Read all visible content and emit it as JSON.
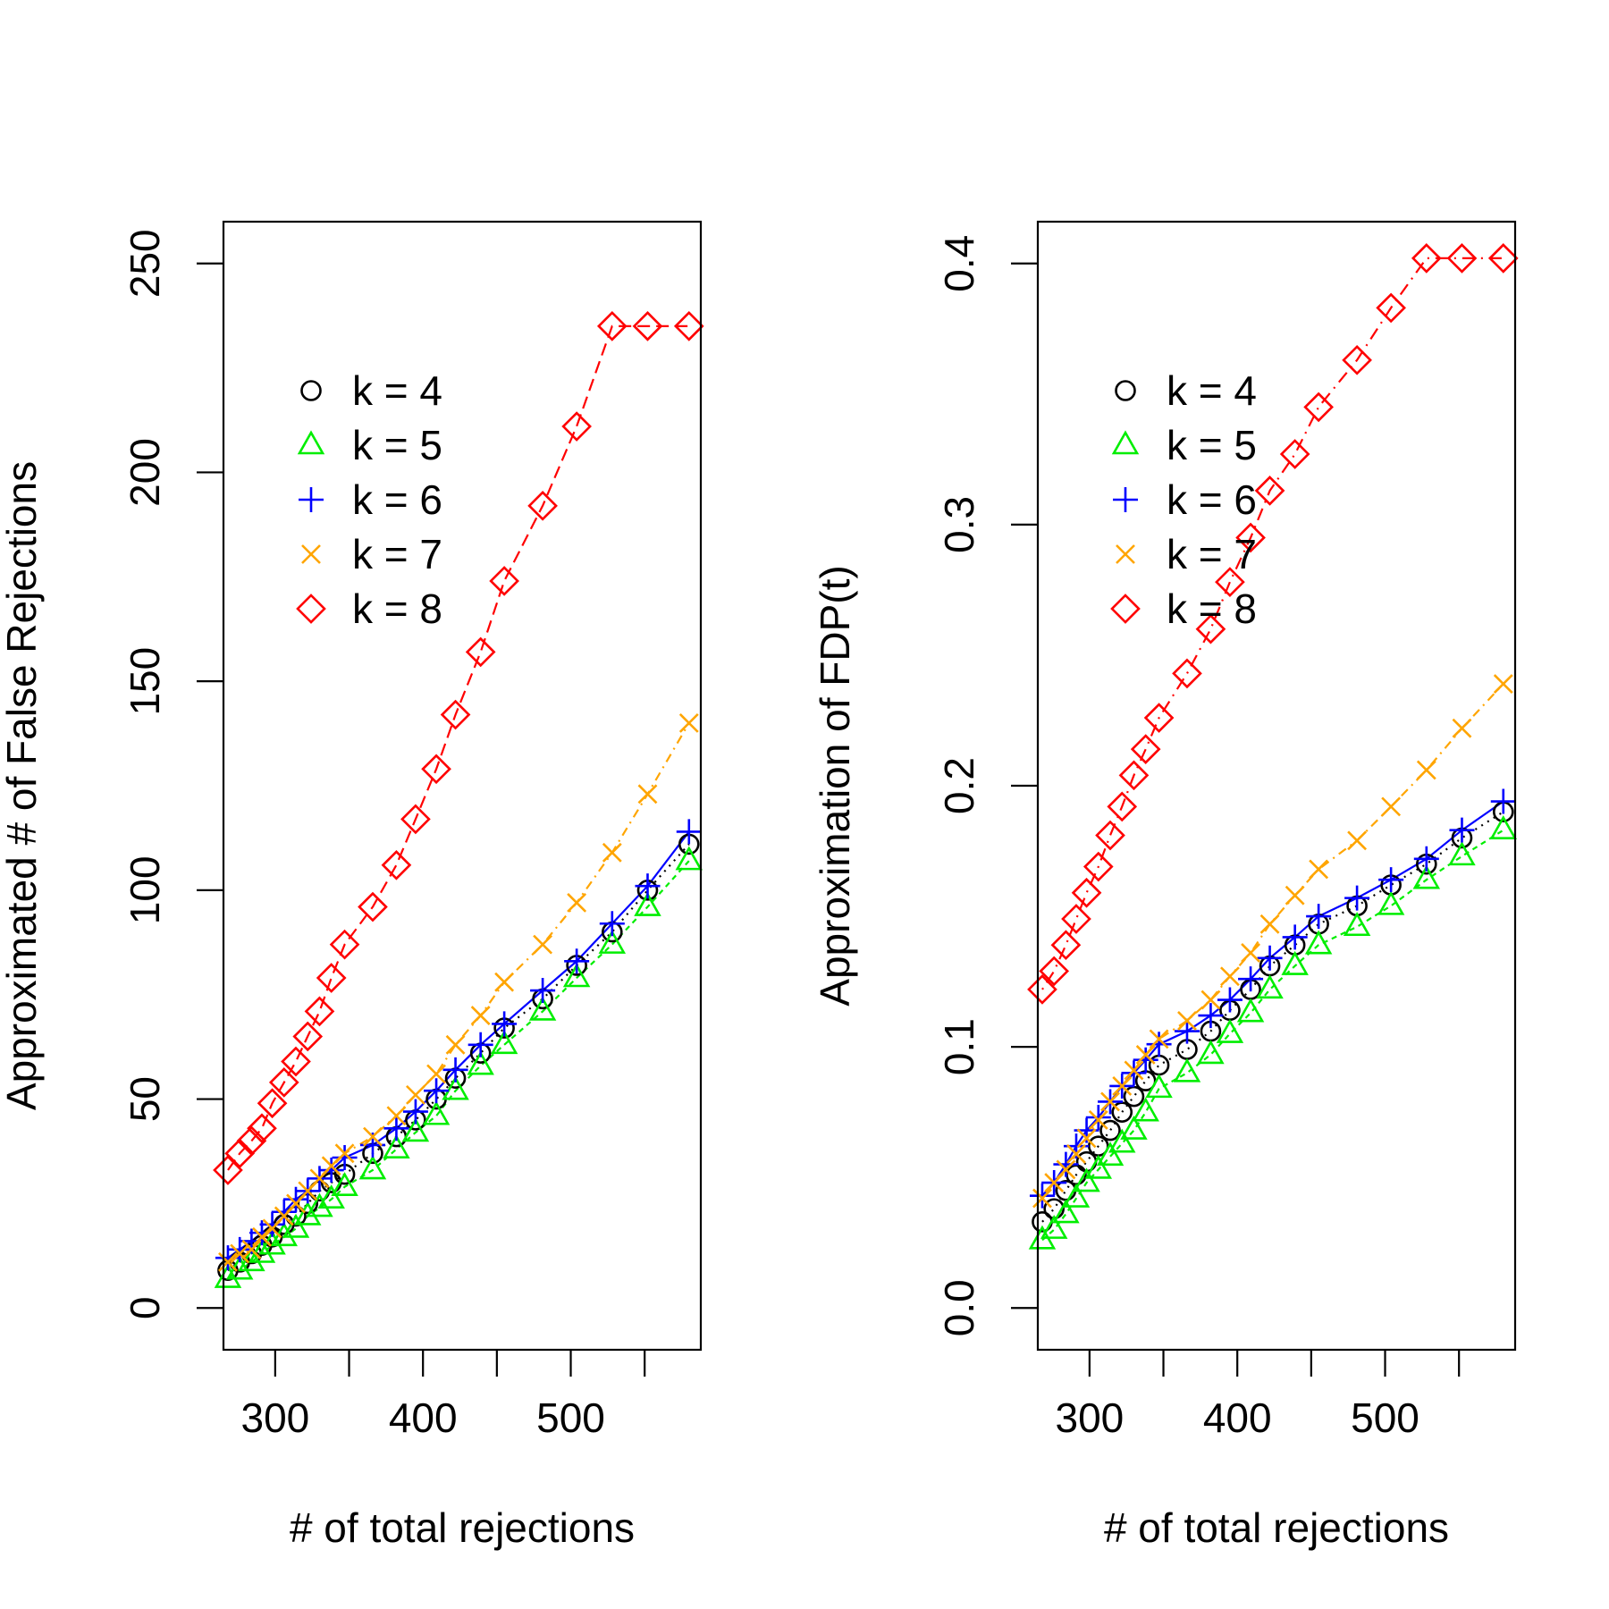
{
  "chart_data": [
    {
      "type": "scatter",
      "title": "",
      "xlabel": "# of total rejections",
      "ylabel": "Approximated # of False Rejections",
      "xlim": [
        265,
        588
      ],
      "ylim": [
        -10,
        260
      ],
      "xticks": [
        300,
        350,
        400,
        450,
        500,
        550
      ],
      "xtick_labels": [
        "300",
        "",
        "400",
        "",
        "500",
        ""
      ],
      "yticks": [
        0,
        50,
        100,
        150,
        200,
        250
      ],
      "ytick_labels": [
        "0",
        "50",
        "100",
        "150",
        "200",
        "250"
      ],
      "x": [
        268,
        276,
        284,
        291,
        298,
        306,
        314,
        322,
        330,
        338,
        347,
        366,
        382,
        395,
        409,
        422,
        439,
        455,
        481,
        504,
        528,
        552,
        580
      ],
      "legend_position": "top-left",
      "series": [
        {
          "name": "k = 4",
          "color": "#000000",
          "marker": "circle",
          "dash": "2,6",
          "values": [
            9,
            11,
            13,
            15,
            17,
            20,
            22,
            25,
            28,
            30,
            32,
            37,
            41,
            45,
            50,
            55,
            61,
            67,
            74,
            82,
            90,
            100,
            111
          ]
        },
        {
          "name": "k = 5",
          "color": "#00ee00",
          "marker": "triangle",
          "dash": "6,5",
          "values": [
            7,
            9,
            11,
            13,
            15,
            17,
            19,
            22,
            24,
            26,
            29,
            33,
            38,
            42,
            46,
            52,
            58,
            63,
            71,
            79,
            87,
            96,
            107
          ]
        },
        {
          "name": "k = 6",
          "color": "#0000ff",
          "marker": "plus",
          "dash": "",
          "values": [
            12,
            14,
            16,
            18,
            20,
            23,
            26,
            28,
            31,
            33,
            36,
            39,
            43,
            47,
            52,
            57,
            63,
            68,
            76,
            83,
            92,
            101,
            114
          ]
        },
        {
          "name": "k = 7",
          "color": "#ffa500",
          "marker": "x",
          "dash": "2,6,10,6",
          "values": [
            11,
            13,
            14,
            17,
            19,
            22,
            25,
            28,
            31,
            34,
            37,
            41,
            46,
            51,
            56,
            63,
            70,
            78,
            87,
            97,
            109,
            123,
            140
          ]
        },
        {
          "name": "k = 8",
          "color": "#ff0000",
          "marker": "diamond",
          "dash": "14,7",
          "values": [
            33,
            37,
            40,
            43,
            49,
            54,
            59,
            65,
            71,
            79,
            87,
            96,
            106,
            117,
            129,
            142,
            157,
            174,
            192,
            211,
            235,
            235,
            235
          ]
        }
      ]
    },
    {
      "type": "scatter",
      "title": "",
      "xlabel": "# of total rejections",
      "ylabel": "Approximation of FDP(t)",
      "xlim": [
        265,
        588
      ],
      "ylim": [
        -0.016,
        0.416
      ],
      "xticks": [
        300,
        350,
        400,
        450,
        500,
        550
      ],
      "xtick_labels": [
        "300",
        "",
        "400",
        "",
        "500",
        ""
      ],
      "yticks": [
        0.0,
        0.1,
        0.2,
        0.3,
        0.4
      ],
      "ytick_labels": [
        "0.0",
        "0.1",
        "0.2",
        "0.3",
        "0.4"
      ],
      "x": [
        268,
        276,
        284,
        291,
        298,
        306,
        314,
        322,
        330,
        338,
        347,
        366,
        382,
        395,
        409,
        422,
        439,
        455,
        481,
        504,
        528,
        552,
        580
      ],
      "legend_position": "top-left",
      "series": [
        {
          "name": "k = 4",
          "color": "#000000",
          "marker": "circle",
          "dash": "2,6",
          "values": [
            0.033,
            0.038,
            0.045,
            0.051,
            0.056,
            0.062,
            0.068,
            0.075,
            0.081,
            0.087,
            0.093,
            0.099,
            0.106,
            0.114,
            0.122,
            0.131,
            0.139,
            0.147,
            0.154,
            0.162,
            0.17,
            0.18,
            0.19
          ]
        },
        {
          "name": "k = 5",
          "color": "#00ee00",
          "marker": "triangle",
          "dash": "6,5",
          "values": [
            0.026,
            0.03,
            0.036,
            0.042,
            0.048,
            0.053,
            0.058,
            0.063,
            0.068,
            0.075,
            0.084,
            0.09,
            0.097,
            0.105,
            0.113,
            0.122,
            0.131,
            0.139,
            0.146,
            0.154,
            0.164,
            0.173,
            0.183
          ]
        },
        {
          "name": "k = 6",
          "color": "#0000ff",
          "marker": "plus",
          "dash": "",
          "values": [
            0.043,
            0.048,
            0.055,
            0.062,
            0.068,
            0.073,
            0.079,
            0.085,
            0.09,
            0.095,
            0.101,
            0.106,
            0.112,
            0.118,
            0.126,
            0.134,
            0.142,
            0.15,
            0.157,
            0.164,
            0.172,
            0.183,
            0.194
          ]
        },
        {
          "name": "k = 7",
          "color": "#ffa500",
          "marker": "x",
          "dash": "2,6,10,6",
          "values": [
            0.042,
            0.048,
            0.053,
            0.059,
            0.065,
            0.072,
            0.079,
            0.085,
            0.091,
            0.097,
            0.103,
            0.11,
            0.118,
            0.127,
            0.136,
            0.147,
            0.158,
            0.168,
            0.179,
            0.192,
            0.206,
            0.222,
            0.239
          ]
        },
        {
          "name": "k = 8",
          "color": "#ff0000",
          "marker": "diamond",
          "dash": "2,7,14,7",
          "values": [
            0.122,
            0.129,
            0.139,
            0.149,
            0.159,
            0.169,
            0.181,
            0.192,
            0.204,
            0.214,
            0.226,
            0.243,
            0.26,
            0.278,
            0.295,
            0.313,
            0.327,
            0.345,
            0.363,
            0.383,
            0.402,
            0.402,
            0.402
          ]
        }
      ]
    }
  ]
}
